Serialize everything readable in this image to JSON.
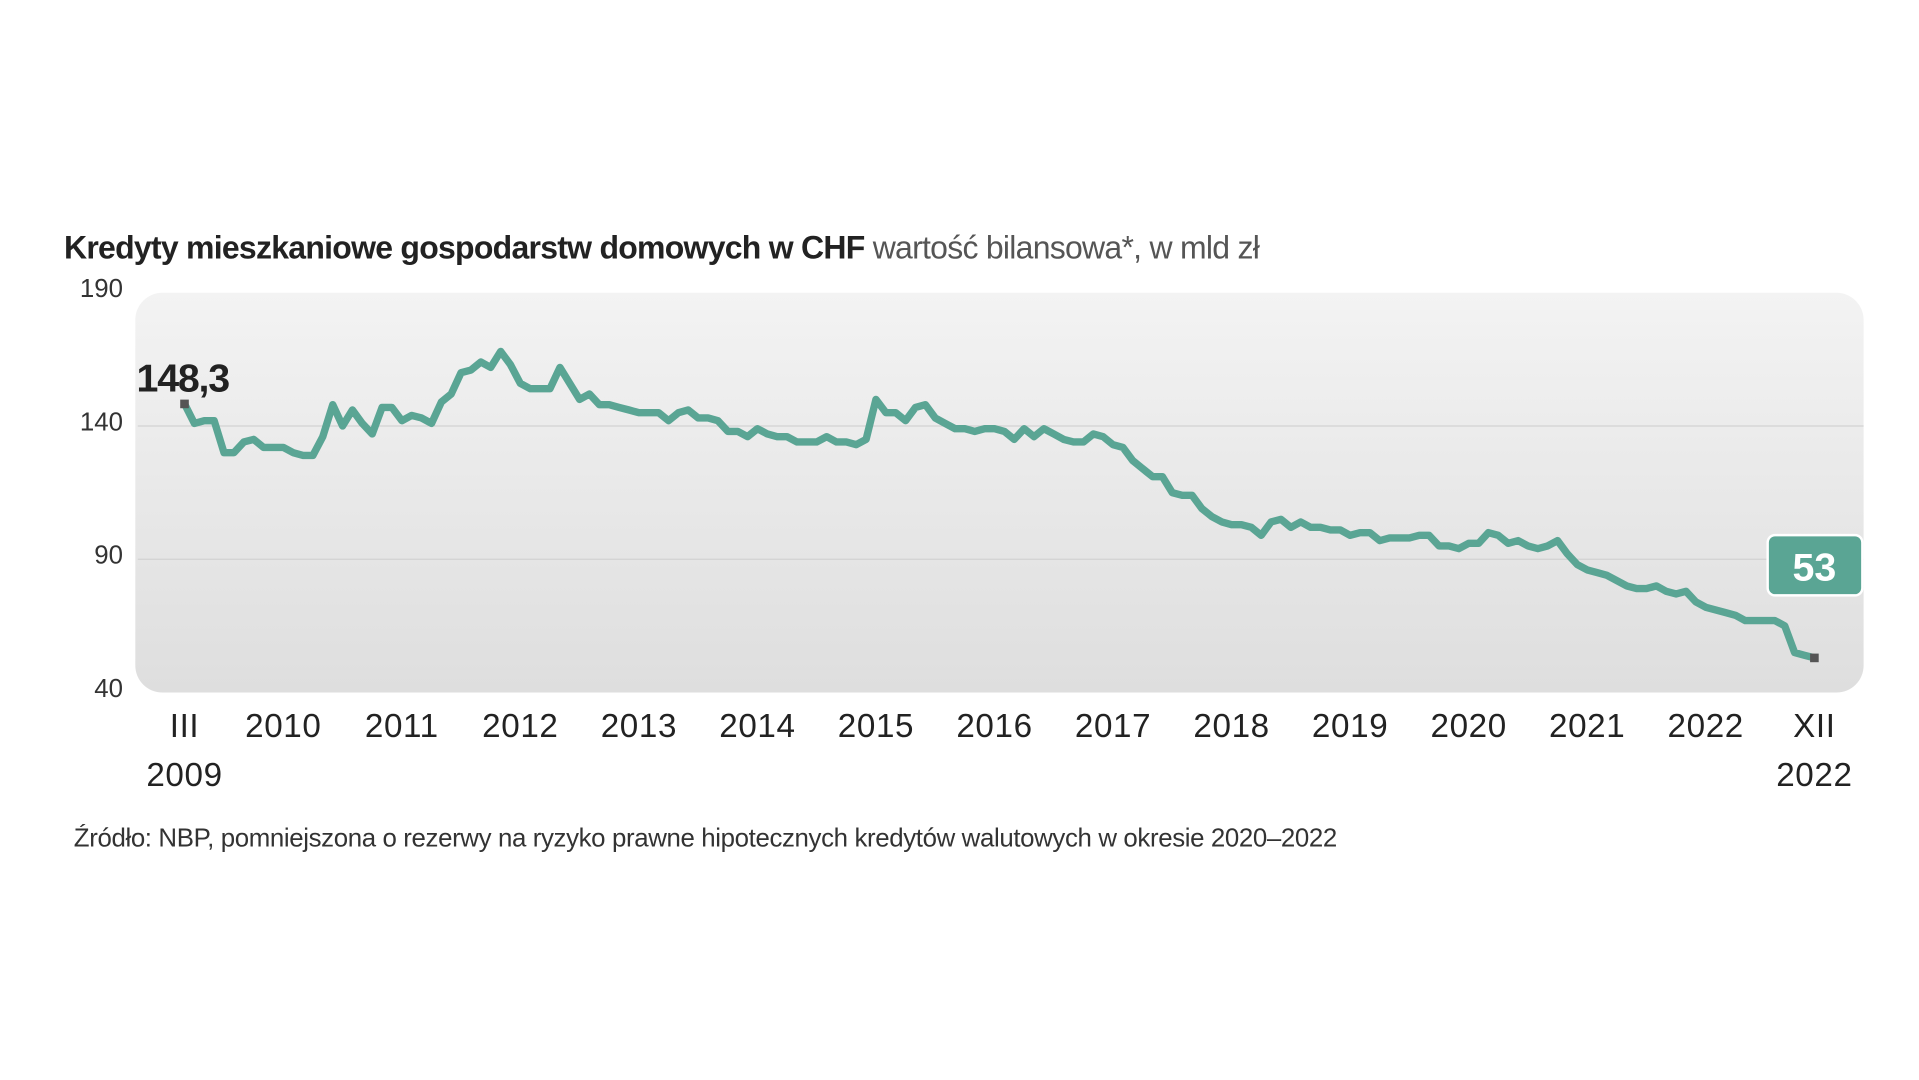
{
  "chart_data": {
    "type": "line",
    "title": "Kredyty mieszkaniowe gospodarstw domowych w CHF",
    "subtitle": "wartość bilansowa*, w mld zł",
    "note": "Źródło: NBP, pomniejszona o rezerwy na ryzyko prawne hipotecznych kredytów walutowych w okresie 2020–2022",
    "ylim": [
      40,
      190
    ],
    "yticks": [
      40,
      90,
      140,
      190
    ],
    "grid": true,
    "categories": [
      "III\n2009",
      null,
      null,
      null,
      null,
      null,
      null,
      null,
      null,
      null,
      "2010",
      null,
      null,
      null,
      null,
      null,
      null,
      null,
      null,
      null,
      null,
      null,
      "2011",
      null,
      null,
      null,
      null,
      null,
      null,
      null,
      null,
      null,
      null,
      null,
      "2012",
      null,
      null,
      null,
      null,
      null,
      null,
      null,
      null,
      null,
      null,
      null,
      "2013",
      null,
      null,
      null,
      null,
      null,
      null,
      null,
      null,
      null,
      null,
      null,
      "2014",
      null,
      null,
      null,
      null,
      null,
      null,
      null,
      null,
      null,
      null,
      null,
      "2015",
      null,
      null,
      null,
      null,
      null,
      null,
      null,
      null,
      null,
      null,
      null,
      "2016",
      null,
      null,
      null,
      null,
      null,
      null,
      null,
      null,
      null,
      null,
      null,
      "2017",
      null,
      null,
      null,
      null,
      null,
      null,
      null,
      null,
      null,
      null,
      null,
      "2018",
      null,
      null,
      null,
      null,
      null,
      null,
      null,
      null,
      null,
      null,
      null,
      "2019",
      null,
      null,
      null,
      null,
      null,
      null,
      null,
      null,
      null,
      null,
      null,
      "2020",
      null,
      null,
      null,
      null,
      null,
      null,
      null,
      null,
      null,
      null,
      null,
      "2021",
      null,
      null,
      null,
      null,
      null,
      null,
      null,
      null,
      null,
      null,
      null,
      "2022",
      null,
      null,
      null,
      null,
      null,
      null,
      null,
      null,
      null,
      null,
      "XII\n2022"
    ],
    "series": [
      {
        "name": "Kredyty mieszkaniowe w CHF",
        "color": "#5aa594",
        "values": [
          148.3,
          141,
          142,
          142,
          130,
          130,
          134,
          135,
          132,
          132,
          132,
          130,
          129,
          129,
          136,
          148,
          140,
          146,
          141,
          137,
          147,
          147,
          142,
          144,
          143,
          141,
          149,
          152,
          160,
          161,
          164,
          162,
          168,
          163,
          156,
          154,
          154,
          154,
          162,
          156,
          150,
          152,
          148,
          148,
          147,
          146,
          145,
          145,
          145,
          142,
          145,
          146,
          143,
          143,
          142,
          138,
          138,
          136,
          139,
          137,
          136,
          136,
          134,
          134,
          134,
          136,
          134,
          134,
          133,
          135,
          150,
          145,
          145,
          142,
          147,
          148,
          143,
          141,
          139,
          139,
          138,
          139,
          139,
          138,
          135,
          139,
          136,
          139,
          137,
          135,
          134,
          134,
          137,
          136,
          133,
          132,
          127,
          124,
          121,
          121,
          115,
          114,
          114,
          109,
          106,
          104,
          103,
          103,
          102,
          99,
          104,
          105,
          102,
          104,
          102,
          102,
          101,
          101,
          99,
          100,
          100,
          97,
          98,
          98,
          98,
          99,
          99,
          95,
          95,
          94,
          96,
          96,
          100,
          99,
          96,
          97,
          95,
          94,
          95,
          97,
          92,
          88,
          86,
          85,
          84,
          82,
          80,
          79,
          79,
          80,
          78,
          77,
          78,
          74,
          72,
          71,
          70,
          69,
          67,
          67,
          67,
          67,
          65,
          55,
          54,
          53
        ],
        "value_labels": [
          "148,3",
          null,
          null,
          null,
          null,
          null,
          null,
          null,
          null,
          null,
          null,
          null,
          null,
          null,
          null,
          null,
          null,
          null,
          null,
          null,
          null,
          null,
          null,
          null,
          null,
          null,
          null,
          null,
          null,
          null,
          null,
          null,
          null,
          null,
          null,
          null,
          null,
          null,
          null,
          null,
          null,
          null,
          null,
          null,
          null,
          null,
          null,
          null,
          null,
          null,
          null,
          null,
          null,
          null,
          null,
          null,
          null,
          null,
          null,
          null,
          null,
          null,
          null,
          null,
          null,
          null,
          null,
          null,
          null,
          null,
          null,
          null,
          null,
          null,
          null,
          null,
          null,
          null,
          null,
          null,
          null,
          null,
          null,
          null,
          null,
          null,
          null,
          null,
          null,
          null,
          null,
          null,
          null,
          null,
          null,
          null,
          null,
          null,
          null,
          null,
          null,
          null,
          null,
          null,
          null,
          null,
          null,
          null,
          null,
          null,
          null,
          null,
          null,
          null,
          null,
          null,
          null,
          null,
          null,
          null,
          null,
          null,
          null,
          null,
          null,
          null,
          null,
          null,
          null,
          null,
          null,
          null,
          null,
          null,
          null,
          null,
          null,
          null,
          null,
          null,
          null,
          null,
          null,
          null,
          null,
          null,
          null,
          null,
          null,
          null,
          null,
          null,
          null,
          null,
          null,
          null,
          null,
          null,
          null,
          null,
          null,
          null,
          null,
          null,
          null,
          "53"
        ]
      }
    ]
  }
}
